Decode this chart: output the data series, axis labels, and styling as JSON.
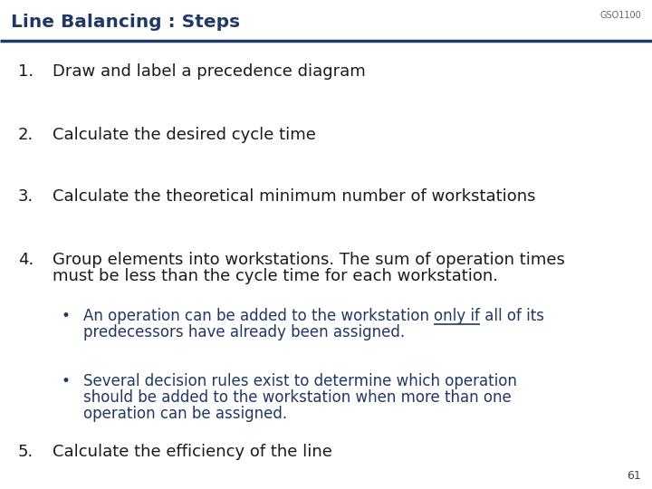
{
  "title": "Line Balancing : Steps",
  "course_code": "GSO1100",
  "bg_color": "#FFFFFF",
  "title_color": "#1F3864",
  "header_line_color": "#1F3864",
  "dark_text_color": "#1A1A1A",
  "blue_text_color": "#1F3864",
  "page_number": "61",
  "items": [
    {
      "num": "1.",
      "lines": [
        "Draw and label a precedence diagram"
      ],
      "indent": 0,
      "color": "dark",
      "has_underline": false
    },
    {
      "num": "2.",
      "lines": [
        "Calculate the desired cycle time"
      ],
      "indent": 0,
      "color": "dark",
      "has_underline": false
    },
    {
      "num": "3.",
      "lines": [
        "Calculate the theoretical minimum number of workstations"
      ],
      "indent": 0,
      "color": "dark",
      "has_underline": false
    },
    {
      "num": "4.",
      "lines": [
        "Group elements into workstations. The sum of operation times",
        "must be less than the cycle time for each workstation."
      ],
      "indent": 0,
      "color": "dark",
      "has_underline": false
    },
    {
      "num": "•",
      "lines": [
        "An operation can be added to the workstation only if all of its",
        "predecessors have already been assigned."
      ],
      "indent": 1,
      "color": "blue",
      "has_underline": true,
      "underline_before": "An operation can be added to the workstation ",
      "underline_word": "only if",
      "underline_after": " all of its"
    },
    {
      "num": "•",
      "lines": [
        "Several decision rules exist to determine which operation",
        "should be added to the workstation when more than one",
        "operation can be assigned."
      ],
      "indent": 1,
      "color": "blue",
      "has_underline": false
    },
    {
      "num": "5.",
      "lines": [
        "Calculate the efficiency of the line"
      ],
      "indent": 0,
      "color": "dark",
      "has_underline": false
    }
  ]
}
